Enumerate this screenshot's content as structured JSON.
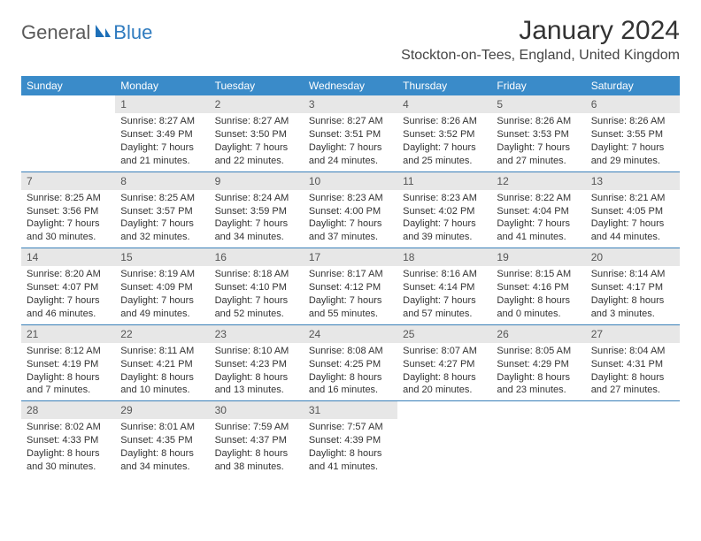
{
  "logo": {
    "general": "General",
    "blue": "Blue"
  },
  "title": "January 2024",
  "location": "Stockton-on-Tees, England, United Kingdom",
  "colors": {
    "header_bg": "#3a8bc9",
    "header_text": "#ffffff",
    "daynum_bg": "#e7e7e7",
    "row_divider": "#397fb8",
    "logo_blue": "#2f7bbf",
    "logo_gray": "#5a5a5a"
  },
  "weekdays": [
    "Sunday",
    "Monday",
    "Tuesday",
    "Wednesday",
    "Thursday",
    "Friday",
    "Saturday"
  ],
  "weeks": [
    [
      null,
      {
        "n": "1",
        "sr": "Sunrise: 8:27 AM",
        "ss": "Sunset: 3:49 PM",
        "d1": "Daylight: 7 hours",
        "d2": "and 21 minutes."
      },
      {
        "n": "2",
        "sr": "Sunrise: 8:27 AM",
        "ss": "Sunset: 3:50 PM",
        "d1": "Daylight: 7 hours",
        "d2": "and 22 minutes."
      },
      {
        "n": "3",
        "sr": "Sunrise: 8:27 AM",
        "ss": "Sunset: 3:51 PM",
        "d1": "Daylight: 7 hours",
        "d2": "and 24 minutes."
      },
      {
        "n": "4",
        "sr": "Sunrise: 8:26 AM",
        "ss": "Sunset: 3:52 PM",
        "d1": "Daylight: 7 hours",
        "d2": "and 25 minutes."
      },
      {
        "n": "5",
        "sr": "Sunrise: 8:26 AM",
        "ss": "Sunset: 3:53 PM",
        "d1": "Daylight: 7 hours",
        "d2": "and 27 minutes."
      },
      {
        "n": "6",
        "sr": "Sunrise: 8:26 AM",
        "ss": "Sunset: 3:55 PM",
        "d1": "Daylight: 7 hours",
        "d2": "and 29 minutes."
      }
    ],
    [
      {
        "n": "7",
        "sr": "Sunrise: 8:25 AM",
        "ss": "Sunset: 3:56 PM",
        "d1": "Daylight: 7 hours",
        "d2": "and 30 minutes."
      },
      {
        "n": "8",
        "sr": "Sunrise: 8:25 AM",
        "ss": "Sunset: 3:57 PM",
        "d1": "Daylight: 7 hours",
        "d2": "and 32 minutes."
      },
      {
        "n": "9",
        "sr": "Sunrise: 8:24 AM",
        "ss": "Sunset: 3:59 PM",
        "d1": "Daylight: 7 hours",
        "d2": "and 34 minutes."
      },
      {
        "n": "10",
        "sr": "Sunrise: 8:23 AM",
        "ss": "Sunset: 4:00 PM",
        "d1": "Daylight: 7 hours",
        "d2": "and 37 minutes."
      },
      {
        "n": "11",
        "sr": "Sunrise: 8:23 AM",
        "ss": "Sunset: 4:02 PM",
        "d1": "Daylight: 7 hours",
        "d2": "and 39 minutes."
      },
      {
        "n": "12",
        "sr": "Sunrise: 8:22 AM",
        "ss": "Sunset: 4:04 PM",
        "d1": "Daylight: 7 hours",
        "d2": "and 41 minutes."
      },
      {
        "n": "13",
        "sr": "Sunrise: 8:21 AM",
        "ss": "Sunset: 4:05 PM",
        "d1": "Daylight: 7 hours",
        "d2": "and 44 minutes."
      }
    ],
    [
      {
        "n": "14",
        "sr": "Sunrise: 8:20 AM",
        "ss": "Sunset: 4:07 PM",
        "d1": "Daylight: 7 hours",
        "d2": "and 46 minutes."
      },
      {
        "n": "15",
        "sr": "Sunrise: 8:19 AM",
        "ss": "Sunset: 4:09 PM",
        "d1": "Daylight: 7 hours",
        "d2": "and 49 minutes."
      },
      {
        "n": "16",
        "sr": "Sunrise: 8:18 AM",
        "ss": "Sunset: 4:10 PM",
        "d1": "Daylight: 7 hours",
        "d2": "and 52 minutes."
      },
      {
        "n": "17",
        "sr": "Sunrise: 8:17 AM",
        "ss": "Sunset: 4:12 PM",
        "d1": "Daylight: 7 hours",
        "d2": "and 55 minutes."
      },
      {
        "n": "18",
        "sr": "Sunrise: 8:16 AM",
        "ss": "Sunset: 4:14 PM",
        "d1": "Daylight: 7 hours",
        "d2": "and 57 minutes."
      },
      {
        "n": "19",
        "sr": "Sunrise: 8:15 AM",
        "ss": "Sunset: 4:16 PM",
        "d1": "Daylight: 8 hours",
        "d2": "and 0 minutes."
      },
      {
        "n": "20",
        "sr": "Sunrise: 8:14 AM",
        "ss": "Sunset: 4:17 PM",
        "d1": "Daylight: 8 hours",
        "d2": "and 3 minutes."
      }
    ],
    [
      {
        "n": "21",
        "sr": "Sunrise: 8:12 AM",
        "ss": "Sunset: 4:19 PM",
        "d1": "Daylight: 8 hours",
        "d2": "and 7 minutes."
      },
      {
        "n": "22",
        "sr": "Sunrise: 8:11 AM",
        "ss": "Sunset: 4:21 PM",
        "d1": "Daylight: 8 hours",
        "d2": "and 10 minutes."
      },
      {
        "n": "23",
        "sr": "Sunrise: 8:10 AM",
        "ss": "Sunset: 4:23 PM",
        "d1": "Daylight: 8 hours",
        "d2": "and 13 minutes."
      },
      {
        "n": "24",
        "sr": "Sunrise: 8:08 AM",
        "ss": "Sunset: 4:25 PM",
        "d1": "Daylight: 8 hours",
        "d2": "and 16 minutes."
      },
      {
        "n": "25",
        "sr": "Sunrise: 8:07 AM",
        "ss": "Sunset: 4:27 PM",
        "d1": "Daylight: 8 hours",
        "d2": "and 20 minutes."
      },
      {
        "n": "26",
        "sr": "Sunrise: 8:05 AM",
        "ss": "Sunset: 4:29 PM",
        "d1": "Daylight: 8 hours",
        "d2": "and 23 minutes."
      },
      {
        "n": "27",
        "sr": "Sunrise: 8:04 AM",
        "ss": "Sunset: 4:31 PM",
        "d1": "Daylight: 8 hours",
        "d2": "and 27 minutes."
      }
    ],
    [
      {
        "n": "28",
        "sr": "Sunrise: 8:02 AM",
        "ss": "Sunset: 4:33 PM",
        "d1": "Daylight: 8 hours",
        "d2": "and 30 minutes."
      },
      {
        "n": "29",
        "sr": "Sunrise: 8:01 AM",
        "ss": "Sunset: 4:35 PM",
        "d1": "Daylight: 8 hours",
        "d2": "and 34 minutes."
      },
      {
        "n": "30",
        "sr": "Sunrise: 7:59 AM",
        "ss": "Sunset: 4:37 PM",
        "d1": "Daylight: 8 hours",
        "d2": "and 38 minutes."
      },
      {
        "n": "31",
        "sr": "Sunrise: 7:57 AM",
        "ss": "Sunset: 4:39 PM",
        "d1": "Daylight: 8 hours",
        "d2": "and 41 minutes."
      },
      null,
      null,
      null
    ]
  ]
}
